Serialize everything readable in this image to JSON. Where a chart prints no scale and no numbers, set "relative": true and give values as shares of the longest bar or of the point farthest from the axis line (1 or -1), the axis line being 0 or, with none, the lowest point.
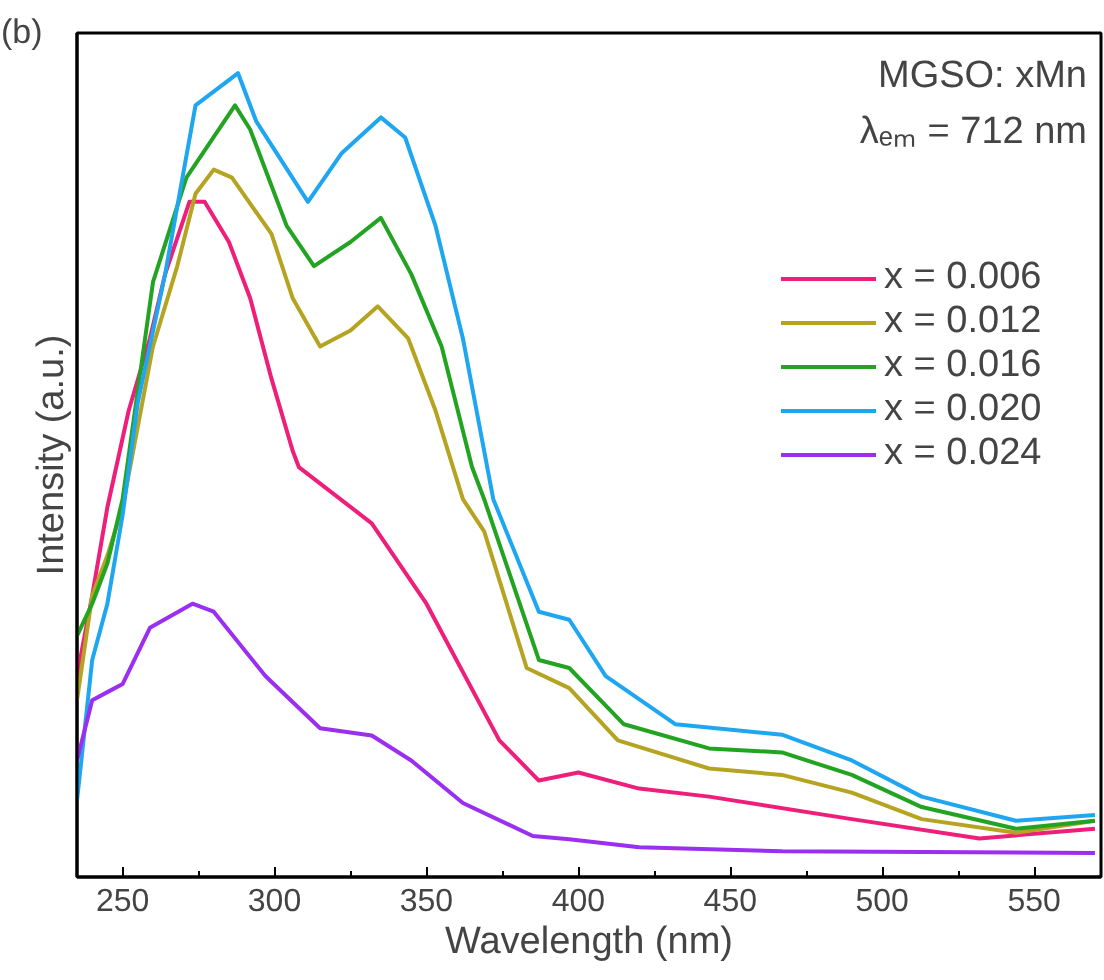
{
  "chart_data": {
    "type": "line",
    "title": "(b)",
    "xlabel": "Wavelength (nm)",
    "ylabel": "Intensity (a.u.)",
    "legend_title": "MGSO: xMn",
    "annotations": [
      "λₑₘ = 712 nm"
    ],
    "relative": true,
    "legend": "top right",
    "xlim": [
      235,
      572
    ],
    "xticks": [
      250,
      {
        "value": 275,
        "label": null
      },
      300,
      {
        "value": 325,
        "label": null
      },
      350,
      {
        "value": 375,
        "label": null
      },
      400,
      {
        "value": 425,
        "label": null
      },
      450,
      {
        "value": 475,
        "label": null
      },
      500,
      {
        "value": 525,
        "label": null
      },
      550
    ],
    "series": [
      {
        "name": "x = 0.006",
        "color": "#ee1f7a",
        "x": [
          235,
          240,
          245,
          252,
          259,
          264,
          272,
          277,
          285,
          292,
          299,
          306,
          308,
          332,
          350,
          374,
          387,
          400,
          420,
          443,
          490,
          532,
          570
        ],
        "values": [
          0.25,
          0.35,
          0.46,
          0.58,
          0.67,
          0.75,
          0.84,
          0.84,
          0.79,
          0.72,
          0.62,
          0.53,
          0.51,
          0.44,
          0.34,
          0.17,
          0.12,
          0.13,
          0.11,
          0.1,
          0.072,
          0.048,
          0.06
        ]
      },
      {
        "name": "x = 0.012",
        "color": "#b5a422",
        "x": [
          235,
          240,
          245,
          250,
          260,
          268,
          274,
          280,
          286,
          299,
          306,
          315,
          325,
          334,
          344,
          353,
          362,
          369,
          383,
          397,
          413,
          443,
          467,
          490,
          513,
          544,
          570
        ],
        "values": [
          0.22,
          0.35,
          0.4,
          0.46,
          0.66,
          0.76,
          0.85,
          0.88,
          0.87,
          0.8,
          0.72,
          0.66,
          0.68,
          0.71,
          0.67,
          0.58,
          0.47,
          0.43,
          0.26,
          0.235,
          0.17,
          0.135,
          0.127,
          0.105,
          0.072,
          0.055,
          0.07
        ]
      },
      {
        "name": "x = 0.016",
        "color": "#22a422",
        "x": [
          235,
          240,
          245,
          250,
          260,
          271,
          287,
          292,
          304,
          313,
          325,
          335,
          345,
          355,
          365,
          369,
          387,
          397,
          415,
          443,
          467,
          490,
          513,
          544,
          570
        ],
        "values": [
          0.3,
          0.34,
          0.39,
          0.47,
          0.74,
          0.87,
          0.96,
          0.93,
          0.81,
          0.76,
          0.79,
          0.82,
          0.75,
          0.66,
          0.51,
          0.47,
          0.27,
          0.26,
          0.19,
          0.16,
          0.155,
          0.127,
          0.087,
          0.06,
          0.07
        ]
      },
      {
        "name": "x = 0.020",
        "color": "#1fa6f0",
        "x": [
          235,
          240,
          245,
          250,
          255,
          264,
          274,
          288,
          294,
          311,
          322,
          335,
          343,
          353,
          362,
          372,
          387,
          397,
          409,
          432,
          467,
          490,
          513,
          544,
          570
        ],
        "values": [
          0.095,
          0.27,
          0.34,
          0.45,
          0.59,
          0.75,
          0.96,
          1.0,
          0.94,
          0.84,
          0.9,
          0.945,
          0.92,
          0.81,
          0.67,
          0.47,
          0.33,
          0.32,
          0.25,
          0.19,
          0.177,
          0.145,
          0.1,
          0.07,
          0.077
        ]
      },
      {
        "name": "x = 0.024",
        "color": "#9b2ff0",
        "x": [
          235,
          240,
          245,
          250,
          259,
          273,
          280,
          297,
          315,
          332,
          345,
          362,
          385,
          397,
          420,
          467,
          570
        ],
        "values": [
          0.145,
          0.22,
          0.23,
          0.24,
          0.31,
          0.34,
          0.33,
          0.25,
          0.185,
          0.176,
          0.145,
          0.092,
          0.051,
          0.047,
          0.037,
          0.032,
          0.03
        ]
      }
    ]
  }
}
